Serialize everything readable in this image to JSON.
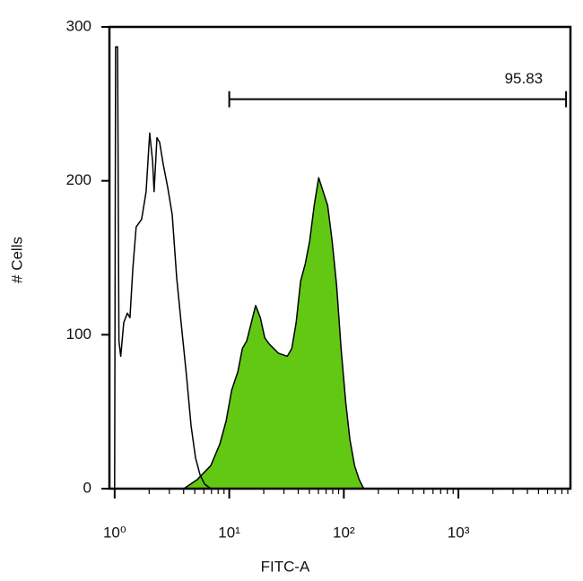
{
  "chart_data": {
    "type": "area",
    "xlabel": "FITC-A",
    "ylabel": "# Cells",
    "xscale": "log",
    "xlim": [
      0.9,
      9500
    ],
    "ylim": [
      0,
      300
    ],
    "yticks": [
      0,
      100,
      200,
      300
    ],
    "xticks": [
      {
        "value": 1,
        "label": "10⁰"
      },
      {
        "value": 10,
        "label": "10¹"
      },
      {
        "value": 100,
        "label": "10²"
      },
      {
        "value": 1000,
        "label": "10³"
      }
    ],
    "xminorticks": [
      2,
      3,
      4,
      5,
      6,
      7,
      8,
      9,
      20,
      30,
      40,
      50,
      60,
      70,
      80,
      90,
      200,
      300,
      400,
      500,
      600,
      700,
      800,
      900,
      2000,
      3000,
      4000,
      5000,
      6000,
      7000,
      8000,
      9000
    ],
    "series": [
      {
        "color": "#000000",
        "fill": "#62c814",
        "x": [
          4.02,
          5.27,
          6.9,
          8.27,
          9.39,
          10.5,
          11.9,
          13.0,
          14.2,
          15.6,
          17.0,
          18.7,
          20.4,
          22.3,
          24.5,
          26.8,
          29.3,
          32.1,
          35.1,
          38.4,
          42.0,
          46.0,
          50.4,
          55.1,
          60.3,
          66.0,
          72.2,
          79.1,
          86.5,
          94.7,
          104,
          113,
          124,
          136,
          149
        ],
        "values": [
          0,
          6,
          15,
          29,
          44,
          64,
          76,
          91,
          96,
          108,
          119,
          111,
          98,
          94,
          91,
          88,
          87,
          86,
          91,
          108,
          135,
          146,
          161,
          184,
          202,
          193,
          184,
          161,
          132,
          91,
          56,
          32,
          15,
          6,
          0
        ]
      },
      {
        "color": "#000000",
        "x": [
          1,
          1.02,
          1.06,
          1.09,
          1.13,
          1.2,
          1.29,
          1.36,
          1.44,
          1.54,
          1.72,
          1.88,
          2.02,
          2.14,
          2.21,
          2.34,
          2.47,
          2.65,
          2.9,
          3.18,
          3.48,
          3.8,
          4.24,
          4.64,
          5.08,
          5.56,
          6.09,
          6.9
        ],
        "values": [
          0,
          287,
          287,
          96,
          86,
          108,
          114,
          111,
          143,
          170,
          175,
          193,
          231,
          213,
          193,
          228,
          225,
          211,
          196,
          178,
          137,
          108,
          73,
          41,
          20,
          9,
          3,
          0
        ]
      }
    ],
    "gate": {
      "label": "95.83",
      "x": [
        10,
        8700
      ],
      "y": 253
    }
  }
}
